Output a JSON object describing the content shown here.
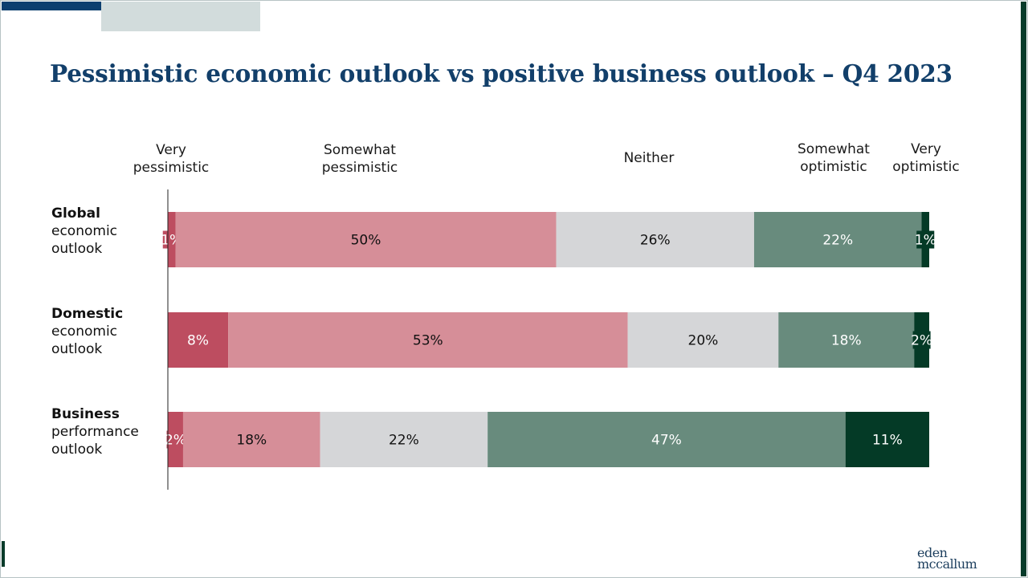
{
  "title": "Pessimistic economic outlook vs positive business outlook – Q4 2023",
  "logo": {
    "line1": "eden",
    "line2": "mccallum"
  },
  "colors": {
    "very_pessimistic": "#bd4d60",
    "somewhat_pessimistic": "#d68e98",
    "neither": "#d5d6d8",
    "somewhat_optimistic": "#688b7d",
    "very_optimistic": "#043a26",
    "title": "#123f6a"
  },
  "column_headers": [
    "Very\npessimistic",
    "Somewhat\npessimistic",
    "Neither",
    "Somewhat\noptimistic",
    "Very\noptimistic"
  ],
  "rows": [
    {
      "bold": "Global",
      "rest": "economic\noutlook"
    },
    {
      "bold": "Domestic",
      "rest": "economic\noutlook"
    },
    {
      "bold": "Business",
      "rest": "performance\noutlook"
    }
  ],
  "chart_data": {
    "type": "bar",
    "orientation": "horizontal",
    "stacked": true,
    "categories": [
      "Global economic outlook",
      "Domestic economic outlook",
      "Business performance outlook"
    ],
    "series": [
      {
        "name": "Very pessimistic",
        "values": [
          1,
          8,
          2
        ],
        "labels": [
          "1%",
          "8%",
          "2%"
        ]
      },
      {
        "name": "Somewhat pessimistic",
        "values": [
          50,
          53,
          18
        ],
        "labels": [
          "50%",
          "53%",
          "18%"
        ]
      },
      {
        "name": "Neither",
        "values": [
          26,
          20,
          22
        ],
        "labels": [
          "26%",
          "20%",
          "22%"
        ]
      },
      {
        "name": "Somewhat optimistic",
        "values": [
          22,
          18,
          47
        ],
        "labels": [
          "22%",
          "18%",
          "47%"
        ]
      },
      {
        "name": "Very optimistic",
        "values": [
          1,
          2,
          11
        ],
        "labels": [
          "1%",
          "2%",
          "11%"
        ]
      }
    ],
    "unit": "%",
    "xlim": [
      0,
      100
    ],
    "legend_placement": "top"
  }
}
